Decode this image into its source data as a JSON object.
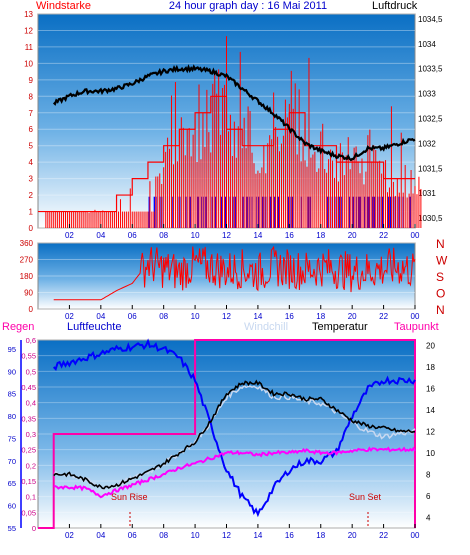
{
  "title": "24 hour graph day : 16 Mai 2011",
  "colors": {
    "wind": "#ff0000",
    "wind_dir": "#0000ff",
    "pressure": "#000000",
    "humidity": "#0000ff",
    "temp": "#000000",
    "dew": "#ff00ff",
    "chill": "#c8d8f0",
    "rain": "#ff00aa",
    "bg_top": "#0a6fc4",
    "bg_bottom": "#ffffff"
  },
  "time_ticks": [
    "02",
    "04",
    "06",
    "08",
    "10",
    "12",
    "14",
    "16",
    "18",
    "20",
    "22",
    "00"
  ],
  "chart_data": [
    {
      "type": "line",
      "panel": "top",
      "left_axis_label": "Windstarke",
      "right_axis_label": "Luftdruck",
      "left_ticks": [
        "0",
        "1",
        "2",
        "3",
        "4",
        "5",
        "6",
        "7",
        "8",
        "9",
        "10",
        "11",
        "12",
        "13"
      ],
      "right_ticks": [
        "1030,5",
        "1031",
        "1031,5",
        "1032",
        "1032,5",
        "1033",
        "1033,5",
        "1034",
        "1034,5"
      ],
      "ylim_left": [
        0,
        13
      ],
      "ylim_right": [
        1030.3,
        1034.6
      ],
      "x": [
        "01",
        "02",
        "03",
        "04",
        "05",
        "06",
        "07",
        "08",
        "09",
        "10",
        "11",
        "12",
        "13",
        "14",
        "15",
        "16",
        "17",
        "18",
        "19",
        "20",
        "21",
        "22",
        "23",
        "00"
      ],
      "series": [
        {
          "name": "Luftdruck",
          "values": [
            1032.8,
            1032.95,
            1033.05,
            1033.05,
            1033.1,
            1033.2,
            1033.35,
            1033.45,
            1033.5,
            1033.5,
            1033.45,
            1033.35,
            1033.1,
            1032.85,
            1032.6,
            1032.3,
            1032.0,
            1031.85,
            1031.75,
            1031.7,
            1031.9,
            1031.9,
            1032.0,
            1032.1
          ]
        },
        {
          "name": "Windstarke",
          "values": [
            1,
            1,
            1,
            1,
            1,
            2,
            3,
            4,
            5,
            6,
            7,
            8,
            6,
            5,
            5,
            6,
            7,
            5,
            5,
            4,
            4,
            4,
            3,
            3
          ]
        },
        {
          "name": "Windstarke Max",
          "values": [
            2,
            2,
            1,
            1,
            2,
            4,
            5,
            8,
            10,
            9,
            11,
            12,
            12,
            9,
            10,
            9,
            11,
            13,
            8,
            7,
            6,
            9,
            8,
            5
          ]
        }
      ]
    },
    {
      "type": "line",
      "panel": "middle",
      "left_ticks": [
        "0",
        "90",
        "180",
        "270",
        "360"
      ],
      "right_labels": [
        "N",
        "W",
        "S",
        "O",
        "N"
      ],
      "ylim": [
        0,
        360
      ],
      "x": [
        "01",
        "02",
        "03",
        "04",
        "05",
        "06",
        "07",
        "08",
        "09",
        "10",
        "11",
        "12",
        "13",
        "14",
        "15",
        "16",
        "17",
        "18",
        "19",
        "20",
        "21",
        "22",
        "23",
        "00"
      ],
      "series": [
        {
          "name": "Windrichtung",
          "values": [
            50,
            50,
            50,
            50,
            100,
            140,
            250,
            220,
            200,
            240,
            230,
            210,
            220,
            200,
            230,
            220,
            210,
            230,
            220,
            200,
            210,
            220,
            230,
            210
          ]
        }
      ]
    },
    {
      "type": "line",
      "panel": "bottom",
      "legend": [
        "Regen",
        "Luftfeuchte",
        "Windchill",
        "Temperatur",
        "Taupunkt"
      ],
      "rain_ticks": [
        "0",
        "0,05",
        "0,1",
        "0,15",
        "0,2",
        "0,25",
        "0,3",
        "0,35",
        "0,4",
        "0,45",
        "0,5",
        "0,55",
        "0,6"
      ],
      "humidity_ticks": [
        "55",
        "60",
        "65",
        "70",
        "75",
        "80",
        "85",
        "90",
        "95"
      ],
      "temp_ticks": [
        "4",
        "6",
        "8",
        "10",
        "12",
        "14",
        "16",
        "18",
        "20"
      ],
      "ylim_rain": [
        0,
        0.6
      ],
      "ylim_humidity": [
        55,
        97
      ],
      "ylim_temp": [
        3,
        20.5
      ],
      "annotations": [
        "Sun Rise",
        "Sun Set"
      ],
      "x": [
        "01",
        "02",
        "03",
        "04",
        "05",
        "06",
        "07",
        "08",
        "09",
        "10",
        "11",
        "12",
        "13",
        "14",
        "15",
        "16",
        "17",
        "18",
        "19",
        "20",
        "21",
        "22",
        "23",
        "00"
      ],
      "series": [
        {
          "name": "Luftfeuchte",
          "values": [
            91,
            92,
            93,
            94,
            95,
            95.5,
            96,
            95,
            93,
            88,
            78,
            68,
            62,
            58,
            64,
            68,
            70,
            70,
            72,
            80,
            86,
            88,
            88,
            88
          ]
        },
        {
          "name": "Temperatur",
          "values": [
            8.0,
            8.0,
            7.5,
            6.8,
            7.0,
            7.6,
            8.2,
            9.0,
            10.0,
            11.0,
            13.0,
            15.5,
            16.5,
            16.5,
            15.5,
            15.5,
            15.0,
            15.0,
            14.0,
            13.0,
            12.5,
            12.3,
            12.0,
            12.0
          ]
        },
        {
          "name": "Taupunkt",
          "values": [
            6.8,
            6.8,
            6.7,
            6.0,
            6.5,
            7.0,
            7.5,
            8.0,
            8.6,
            9.0,
            9.5,
            10.0,
            10.0,
            9.8,
            10.0,
            10.0,
            10.2,
            10.0,
            10.0,
            10.2,
            10.3,
            10.3,
            10.3,
            10.3
          ]
        },
        {
          "name": "Windchill",
          "values": [
            8.0,
            8.0,
            7.5,
            6.8,
            7.0,
            7.6,
            8.2,
            9.0,
            10.0,
            11.0,
            12.8,
            15.2,
            16.2,
            16.2,
            15.2,
            15.2,
            14.8,
            14.6,
            13.8,
            12.8,
            12.0,
            11.5,
            11.8,
            12.0
          ]
        },
        {
          "name": "Regen",
          "values": [
            0,
            0.3,
            0.3,
            0.3,
            0.3,
            0.3,
            0.3,
            0.3,
            0.3,
            0.3,
            0.6,
            0.6,
            0.6,
            0.6,
            0.6,
            0.6,
            0.6,
            0.6,
            0.6,
            0.6,
            0.6,
            0.6,
            0.6,
            0.6
          ]
        }
      ]
    }
  ]
}
